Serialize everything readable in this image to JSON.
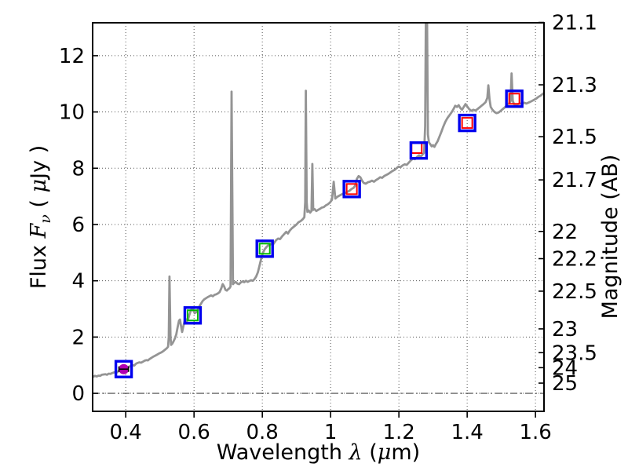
{
  "chart_data": {
    "type": "line",
    "title": "",
    "xlabel": {
      "prefix": "Wavelength  ",
      "lambda": "λ",
      "open": " (",
      "mu": "μ",
      "suffix": "m)"
    },
    "ylabel_left": {
      "prefix": "Flux  ",
      "F": "F",
      "nu": "ν",
      "open": "  ( ",
      "mu": "μ",
      "suffix": "Jy )"
    },
    "ylabel_right": "Magnitude (AB)",
    "xlim": [
      0.303,
      1.625
    ],
    "ylim_flux": [
      -0.64,
      13.17
    ],
    "grid": true,
    "zero_flux_line": true,
    "x_ticks": [
      0.4,
      0.6,
      0.8,
      1.0,
      1.2,
      1.4,
      1.6
    ],
    "x_tick_labels": [
      "0.4",
      "0.6",
      "0.8",
      "1",
      "1.2",
      "1.4",
      "1.6"
    ],
    "y_ticks_flux": [
      0,
      2,
      4,
      6,
      8,
      10,
      12
    ],
    "y_tick_labels_flux": [
      "0",
      "2",
      "4",
      "6",
      "8",
      "10",
      "12"
    ],
    "y_ticks_magnitude": [
      21.1,
      21.3,
      21.5,
      21.7,
      22,
      22.2,
      22.5,
      23,
      23.5,
      24,
      25
    ],
    "y_tick_labels_magnitude": [
      "21.1",
      "21.3",
      "21.5",
      "21.7",
      "22",
      "22.2",
      "22.5",
      "23",
      "23.5",
      "24",
      "25"
    ],
    "magnitude_zeropoint_uJy": 23.9,
    "colors": {
      "spectrum_gray": "#949494",
      "marker_blue": "#0000ee",
      "marker_red": "#ff0000",
      "marker_green": "#00b800",
      "marker_magenta": "#b000b0",
      "errorbar": "#000000",
      "frame": "#000000",
      "grid": "#555555"
    },
    "photometry": [
      {
        "wavelength_um": 0.394,
        "flux_uJy": 0.86,
        "outer": "blue-square",
        "inner": "magenta-circle",
        "xerr_um": 0.014
      },
      {
        "wavelength_um": 0.596,
        "flux_uJy": 2.77,
        "outer": "blue-square",
        "inner": "green-square"
      },
      {
        "wavelength_um": 0.807,
        "flux_uJy": 5.14,
        "outer": "blue-square",
        "inner": "green-square"
      },
      {
        "wavelength_um": 1.062,
        "flux_uJy": 7.26,
        "outer": "blue-square",
        "inner": "red-square"
      },
      {
        "wavelength_um": 1.258,
        "flux_uJy": 8.63,
        "outer": "blue-square",
        "inner": "red-square",
        "inner_dx_um": -0.006,
        "inner_dflux": 0.09
      },
      {
        "wavelength_um": 1.4,
        "flux_uJy": 9.61,
        "outer": "blue-square",
        "inner": "red-square"
      },
      {
        "wavelength_um": 1.538,
        "flux_uJy": 10.47,
        "outer": "blue-square",
        "inner": "red-square"
      }
    ],
    "spectrum": [
      [
        0.303,
        0.58
      ],
      [
        0.31,
        0.62
      ],
      [
        0.315,
        0.6
      ],
      [
        0.32,
        0.63
      ],
      [
        0.325,
        0.62
      ],
      [
        0.33,
        0.66
      ],
      [
        0.34,
        0.68
      ],
      [
        0.345,
        0.66
      ],
      [
        0.35,
        0.7
      ],
      [
        0.355,
        0.69
      ],
      [
        0.36,
        0.72
      ],
      [
        0.37,
        0.76
      ],
      [
        0.375,
        0.75
      ],
      [
        0.38,
        0.8
      ],
      [
        0.385,
        0.84
      ],
      [
        0.39,
        0.87
      ],
      [
        0.395,
        0.9
      ],
      [
        0.4,
        0.92
      ],
      [
        0.405,
        0.91
      ],
      [
        0.41,
        0.95
      ],
      [
        0.415,
        0.97
      ],
      [
        0.42,
        1.0
      ],
      [
        0.425,
        0.99
      ],
      [
        0.43,
        1.05
      ],
      [
        0.435,
        1.08
      ],
      [
        0.44,
        1.1
      ],
      [
        0.445,
        1.09
      ],
      [
        0.45,
        1.12
      ],
      [
        0.455,
        1.16
      ],
      [
        0.46,
        1.18
      ],
      [
        0.465,
        1.17
      ],
      [
        0.47,
        1.22
      ],
      [
        0.475,
        1.26
      ],
      [
        0.48,
        1.3
      ],
      [
        0.485,
        1.33
      ],
      [
        0.49,
        1.36
      ],
      [
        0.495,
        1.4
      ],
      [
        0.5,
        1.43
      ],
      [
        0.505,
        1.46
      ],
      [
        0.51,
        1.5
      ],
      [
        0.515,
        1.55
      ],
      [
        0.52,
        1.6
      ],
      [
        0.524,
        1.66
      ],
      [
        0.526,
        2.0
      ],
      [
        0.528,
        4.15
      ],
      [
        0.531,
        2.0
      ],
      [
        0.533,
        1.72
      ],
      [
        0.537,
        1.78
      ],
      [
        0.54,
        1.85
      ],
      [
        0.544,
        1.95
      ],
      [
        0.548,
        2.1
      ],
      [
        0.552,
        2.35
      ],
      [
        0.556,
        2.58
      ],
      [
        0.559,
        2.62
      ],
      [
        0.562,
        2.38
      ],
      [
        0.565,
        2.18
      ],
      [
        0.568,
        2.35
      ],
      [
        0.572,
        2.55
      ],
      [
        0.575,
        2.65
      ],
      [
        0.578,
        2.56
      ],
      [
        0.582,
        2.6
      ],
      [
        0.586,
        2.78
      ],
      [
        0.59,
        2.92
      ],
      [
        0.594,
        3.02
      ],
      [
        0.598,
        2.95
      ],
      [
        0.602,
        2.85
      ],
      [
        0.606,
        2.88
      ],
      [
        0.61,
        2.92
      ],
      [
        0.615,
        3.08
      ],
      [
        0.62,
        3.18
      ],
      [
        0.625,
        3.28
      ],
      [
        0.63,
        3.34
      ],
      [
        0.64,
        3.42
      ],
      [
        0.65,
        3.48
      ],
      [
        0.655,
        3.45
      ],
      [
        0.66,
        3.5
      ],
      [
        0.665,
        3.52
      ],
      [
        0.67,
        3.55
      ],
      [
        0.675,
        3.6
      ],
      [
        0.68,
        3.74
      ],
      [
        0.684,
        3.88
      ],
      [
        0.688,
        3.8
      ],
      [
        0.692,
        3.68
      ],
      [
        0.696,
        3.65
      ],
      [
        0.7,
        3.7
      ],
      [
        0.704,
        3.74
      ],
      [
        0.707,
        3.8
      ],
      [
        0.71,
        10.72
      ],
      [
        0.714,
        3.88
      ],
      [
        0.717,
        3.92
      ],
      [
        0.722,
        3.96
      ],
      [
        0.727,
        3.9
      ],
      [
        0.732,
        3.88
      ],
      [
        0.737,
        3.94
      ],
      [
        0.742,
        3.98
      ],
      [
        0.747,
        3.95
      ],
      [
        0.752,
        4.0
      ],
      [
        0.757,
        3.96
      ],
      [
        0.762,
        3.99
      ],
      [
        0.767,
        4.02
      ],
      [
        0.772,
        4.0
      ],
      [
        0.777,
        4.06
      ],
      [
        0.782,
        4.15
      ],
      [
        0.787,
        4.3
      ],
      [
        0.792,
        4.55
      ],
      [
        0.797,
        4.8
      ],
      [
        0.802,
        5.0
      ],
      [
        0.807,
        5.12
      ],
      [
        0.812,
        5.2
      ],
      [
        0.817,
        5.26
      ],
      [
        0.822,
        5.28
      ],
      [
        0.827,
        5.32
      ],
      [
        0.832,
        5.3
      ],
      [
        0.84,
        5.44
      ],
      [
        0.846,
        5.5
      ],
      [
        0.852,
        5.48
      ],
      [
        0.858,
        5.58
      ],
      [
        0.864,
        5.66
      ],
      [
        0.87,
        5.74
      ],
      [
        0.875,
        5.68
      ],
      [
        0.88,
        5.78
      ],
      [
        0.886,
        5.86
      ],
      [
        0.892,
        5.92
      ],
      [
        0.9,
        6.0
      ],
      [
        0.906,
        6.08
      ],
      [
        0.912,
        6.12
      ],
      [
        0.918,
        6.18
      ],
      [
        0.923,
        6.26
      ],
      [
        0.9255,
        6.8
      ],
      [
        0.9275,
        10.75
      ],
      [
        0.93,
        6.8
      ],
      [
        0.932,
        6.45
      ],
      [
        0.936,
        6.5
      ],
      [
        0.94,
        6.42
      ],
      [
        0.944,
        6.48
      ],
      [
        0.9465,
        8.15
      ],
      [
        0.949,
        6.52
      ],
      [
        0.953,
        6.55
      ],
      [
        0.958,
        6.48
      ],
      [
        0.963,
        6.52
      ],
      [
        0.968,
        6.55
      ],
      [
        0.974,
        6.6
      ],
      [
        0.98,
        6.62
      ],
      [
        0.986,
        6.68
      ],
      [
        0.992,
        6.72
      ],
      [
        0.998,
        6.78
      ],
      [
        1.004,
        6.88
      ],
      [
        1.009,
        7.52
      ],
      [
        1.014,
        6.92
      ],
      [
        1.019,
        6.98
      ],
      [
        1.025,
        7.02
      ],
      [
        1.031,
        7.06
      ],
      [
        1.037,
        7.1
      ],
      [
        1.043,
        7.12
      ],
      [
        1.049,
        7.16
      ],
      [
        1.055,
        7.2
      ],
      [
        1.061,
        7.26
      ],
      [
        1.067,
        7.3
      ],
      [
        1.072,
        7.38
      ],
      [
        1.077,
        7.62
      ],
      [
        1.082,
        7.72
      ],
      [
        1.087,
        7.68
      ],
      [
        1.092,
        7.56
      ],
      [
        1.097,
        7.48
      ],
      [
        1.103,
        7.45
      ],
      [
        1.109,
        7.5
      ],
      [
        1.115,
        7.52
      ],
      [
        1.121,
        7.56
      ],
      [
        1.127,
        7.52
      ],
      [
        1.133,
        7.58
      ],
      [
        1.139,
        7.62
      ],
      [
        1.145,
        7.68
      ],
      [
        1.151,
        7.66
      ],
      [
        1.157,
        7.72
      ],
      [
        1.163,
        7.76
      ],
      [
        1.169,
        7.8
      ],
      [
        1.175,
        7.85
      ],
      [
        1.181,
        7.9
      ],
      [
        1.187,
        7.94
      ],
      [
        1.193,
        8.0
      ],
      [
        1.199,
        8.06
      ],
      [
        1.205,
        8.04
      ],
      [
        1.211,
        8.1
      ],
      [
        1.217,
        8.14
      ],
      [
        1.223,
        8.12
      ],
      [
        1.229,
        8.2
      ],
      [
        1.235,
        8.28
      ],
      [
        1.241,
        8.34
      ],
      [
        1.247,
        8.32
      ],
      [
        1.253,
        8.4
      ],
      [
        1.259,
        8.46
      ],
      [
        1.265,
        8.42
      ],
      [
        1.27,
        8.5
      ],
      [
        1.274,
        8.55
      ],
      [
        1.277,
        9.5
      ],
      [
        1.279,
        13.4
      ],
      [
        1.2825,
        13.4
      ],
      [
        1.285,
        9.2
      ],
      [
        1.288,
        8.92
      ],
      [
        1.292,
        8.85
      ],
      [
        1.296,
        8.78
      ],
      [
        1.3,
        8.82
      ],
      [
        1.304,
        8.76
      ],
      [
        1.308,
        8.85
      ],
      [
        1.313,
        8.95
      ],
      [
        1.318,
        9.1
      ],
      [
        1.324,
        9.28
      ],
      [
        1.33,
        9.48
      ],
      [
        1.336,
        9.65
      ],
      [
        1.342,
        9.78
      ],
      [
        1.348,
        9.88
      ],
      [
        1.354,
        9.98
      ],
      [
        1.36,
        10.1
      ],
      [
        1.365,
        10.22
      ],
      [
        1.37,
        10.18
      ],
      [
        1.375,
        10.24
      ],
      [
        1.38,
        10.14
      ],
      [
        1.385,
        10.08
      ],
      [
        1.39,
        10.18
      ],
      [
        1.395,
        10.28
      ],
      [
        1.4,
        10.2
      ],
      [
        1.406,
        10.1
      ],
      [
        1.412,
        10.04
      ],
      [
        1.418,
        10.08
      ],
      [
        1.424,
        10.05
      ],
      [
        1.43,
        10.1
      ],
      [
        1.436,
        10.16
      ],
      [
        1.442,
        10.22
      ],
      [
        1.448,
        10.28
      ],
      [
        1.454,
        10.35
      ],
      [
        1.459,
        10.5
      ],
      [
        1.462,
        10.95
      ],
      [
        1.4655,
        10.45
      ],
      [
        1.469,
        10.18
      ],
      [
        1.474,
        10.08
      ],
      [
        1.48,
        10.0
      ],
      [
        1.486,
        9.96
      ],
      [
        1.492,
        9.98
      ],
      [
        1.498,
        10.04
      ],
      [
        1.504,
        10.1
      ],
      [
        1.51,
        10.16
      ],
      [
        1.516,
        10.24
      ],
      [
        1.522,
        10.3
      ],
      [
        1.527,
        10.38
      ],
      [
        1.53,
        11.37
      ],
      [
        1.5335,
        10.4
      ],
      [
        1.537,
        10.28
      ],
      [
        1.543,
        10.24
      ],
      [
        1.549,
        10.28
      ],
      [
        1.555,
        10.3
      ],
      [
        1.561,
        10.28
      ],
      [
        1.567,
        10.33
      ],
      [
        1.573,
        10.3
      ],
      [
        1.579,
        10.33
      ],
      [
        1.585,
        10.36
      ],
      [
        1.591,
        10.4
      ],
      [
        1.597,
        10.44
      ],
      [
        1.603,
        10.48
      ],
      [
        1.609,
        10.54
      ],
      [
        1.615,
        10.58
      ],
      [
        1.621,
        10.64
      ],
      [
        1.625,
        10.68
      ]
    ]
  }
}
